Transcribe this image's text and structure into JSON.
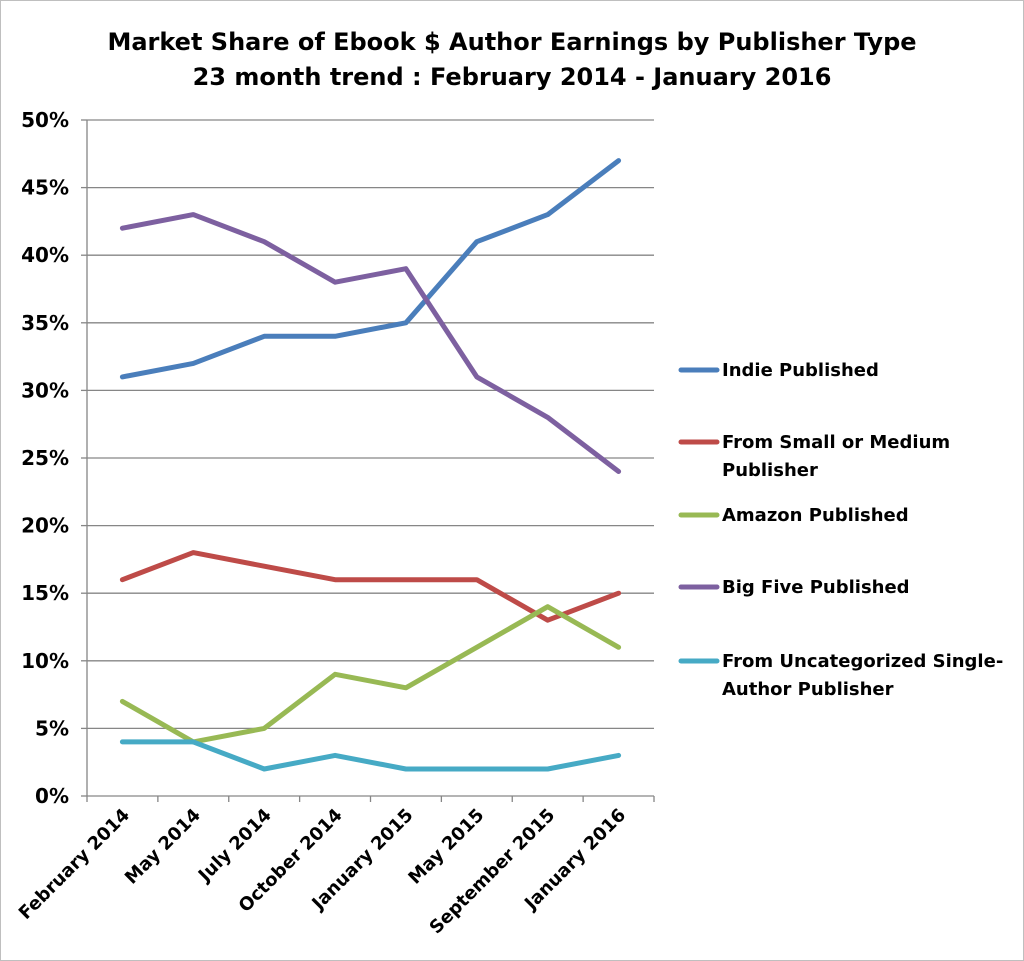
{
  "chart_data": {
    "type": "line",
    "title_line1": "Market Share of Ebook $ Author Earnings by Publisher Type",
    "title_line2": "23 month trend : February 2014 - January 2016",
    "categories": [
      "February 2014",
      "May 2014",
      "July 2014",
      "October 2014",
      "January 2015",
      "May 2015",
      "September 2015",
      "January 2016"
    ],
    "ylim": [
      0,
      50
    ],
    "y_ticks": [
      0,
      5,
      10,
      15,
      20,
      25,
      30,
      35,
      40,
      45,
      50
    ],
    "y_tick_labels": [
      "0%",
      "5%",
      "10%",
      "15%",
      "20%",
      "25%",
      "30%",
      "35%",
      "40%",
      "45%",
      "50%"
    ],
    "grid": true,
    "legend_position": "right",
    "series": [
      {
        "name": "Indie Published",
        "color": "#4a7ebb",
        "values": [
          31,
          32,
          34,
          34,
          35,
          41,
          43,
          47
        ]
      },
      {
        "name": "From Small or Medium Publisher",
        "legend_lines": [
          "From Small or Medium",
          "Publisher"
        ],
        "color": "#be4b48",
        "values": [
          16,
          18,
          17,
          16,
          16,
          16,
          13,
          15
        ]
      },
      {
        "name": "Amazon Published",
        "color": "#98b954",
        "values": [
          7,
          4,
          5,
          9,
          8,
          11,
          14,
          11
        ]
      },
      {
        "name": "Big Five Published",
        "color": "#7d60a0",
        "values": [
          42,
          43,
          41,
          38,
          39,
          31,
          28,
          24
        ]
      },
      {
        "name": "From Uncategorized Single-Author Publisher",
        "legend_lines": [
          "From Uncategorized Single-",
          "Author Publisher"
        ],
        "color": "#46aac5",
        "values": [
          4,
          4,
          2,
          3,
          2,
          2,
          2,
          3
        ]
      }
    ]
  }
}
